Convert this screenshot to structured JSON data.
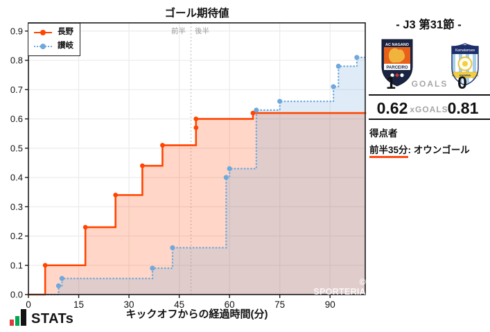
{
  "chart_data": {
    "type": "step-line",
    "title": "ゴール期待値",
    "xlabel": "キックオフからの経過時間(分)",
    "xlim": [
      0,
      100.5
    ],
    "ylim": [
      0,
      0.928
    ],
    "x_ticks": [
      0,
      15,
      30,
      45,
      60,
      75,
      90
    ],
    "y_ticks": [
      0,
      0.1,
      0.2,
      0.3,
      0.4,
      0.5,
      0.6,
      0.7,
      0.8,
      0.9
    ],
    "grid": true,
    "legend_position": "upper-left",
    "halftime_line_x": 48.5,
    "halftime_labels": {
      "left": "前半",
      "right": "後半"
    },
    "watermark": "© SPORTERIA",
    "series": [
      {
        "name": "長野",
        "color": "#ff4500",
        "line_style": "solid",
        "fill": "rgba(255,69,0,0.22)",
        "events": [
          [
            5,
            0.1
          ],
          [
            17,
            0.23
          ],
          [
            26,
            0.34
          ],
          [
            34,
            0.44
          ],
          [
            40,
            0.51
          ],
          [
            50,
            0.57
          ],
          [
            50,
            0.6
          ],
          [
            67,
            0.62
          ]
        ],
        "final_value": 0.62
      },
      {
        "name": "讃岐",
        "color": "#6fa8dc",
        "line_style": "dotted",
        "fill": "rgba(111,168,220,0.22)",
        "events": [
          [
            9,
            0.03
          ],
          [
            10,
            0.055
          ],
          [
            37,
            0.09
          ],
          [
            43,
            0.16
          ],
          [
            59,
            0.4
          ],
          [
            60,
            0.43
          ],
          [
            68,
            0.63
          ],
          [
            75,
            0.66
          ],
          [
            91,
            0.71
          ],
          [
            92.5,
            0.78
          ],
          [
            98,
            0.81
          ]
        ],
        "final_value": 0.81
      }
    ]
  },
  "match": {
    "competition": "- J3 第31節 -",
    "goals_label": "GOALS",
    "xgoals_label": "xGOALS",
    "home": {
      "name": "長野",
      "score": "1",
      "xgoals": "0.62"
    },
    "away": {
      "name": "讃岐",
      "score": "0",
      "xgoals": "0.81"
    },
    "scorers_heading": "得点者",
    "scorer_time": "前半35分",
    "scorer_desc": ": オウンゴール"
  },
  "footer": {
    "brand": "STATs"
  }
}
